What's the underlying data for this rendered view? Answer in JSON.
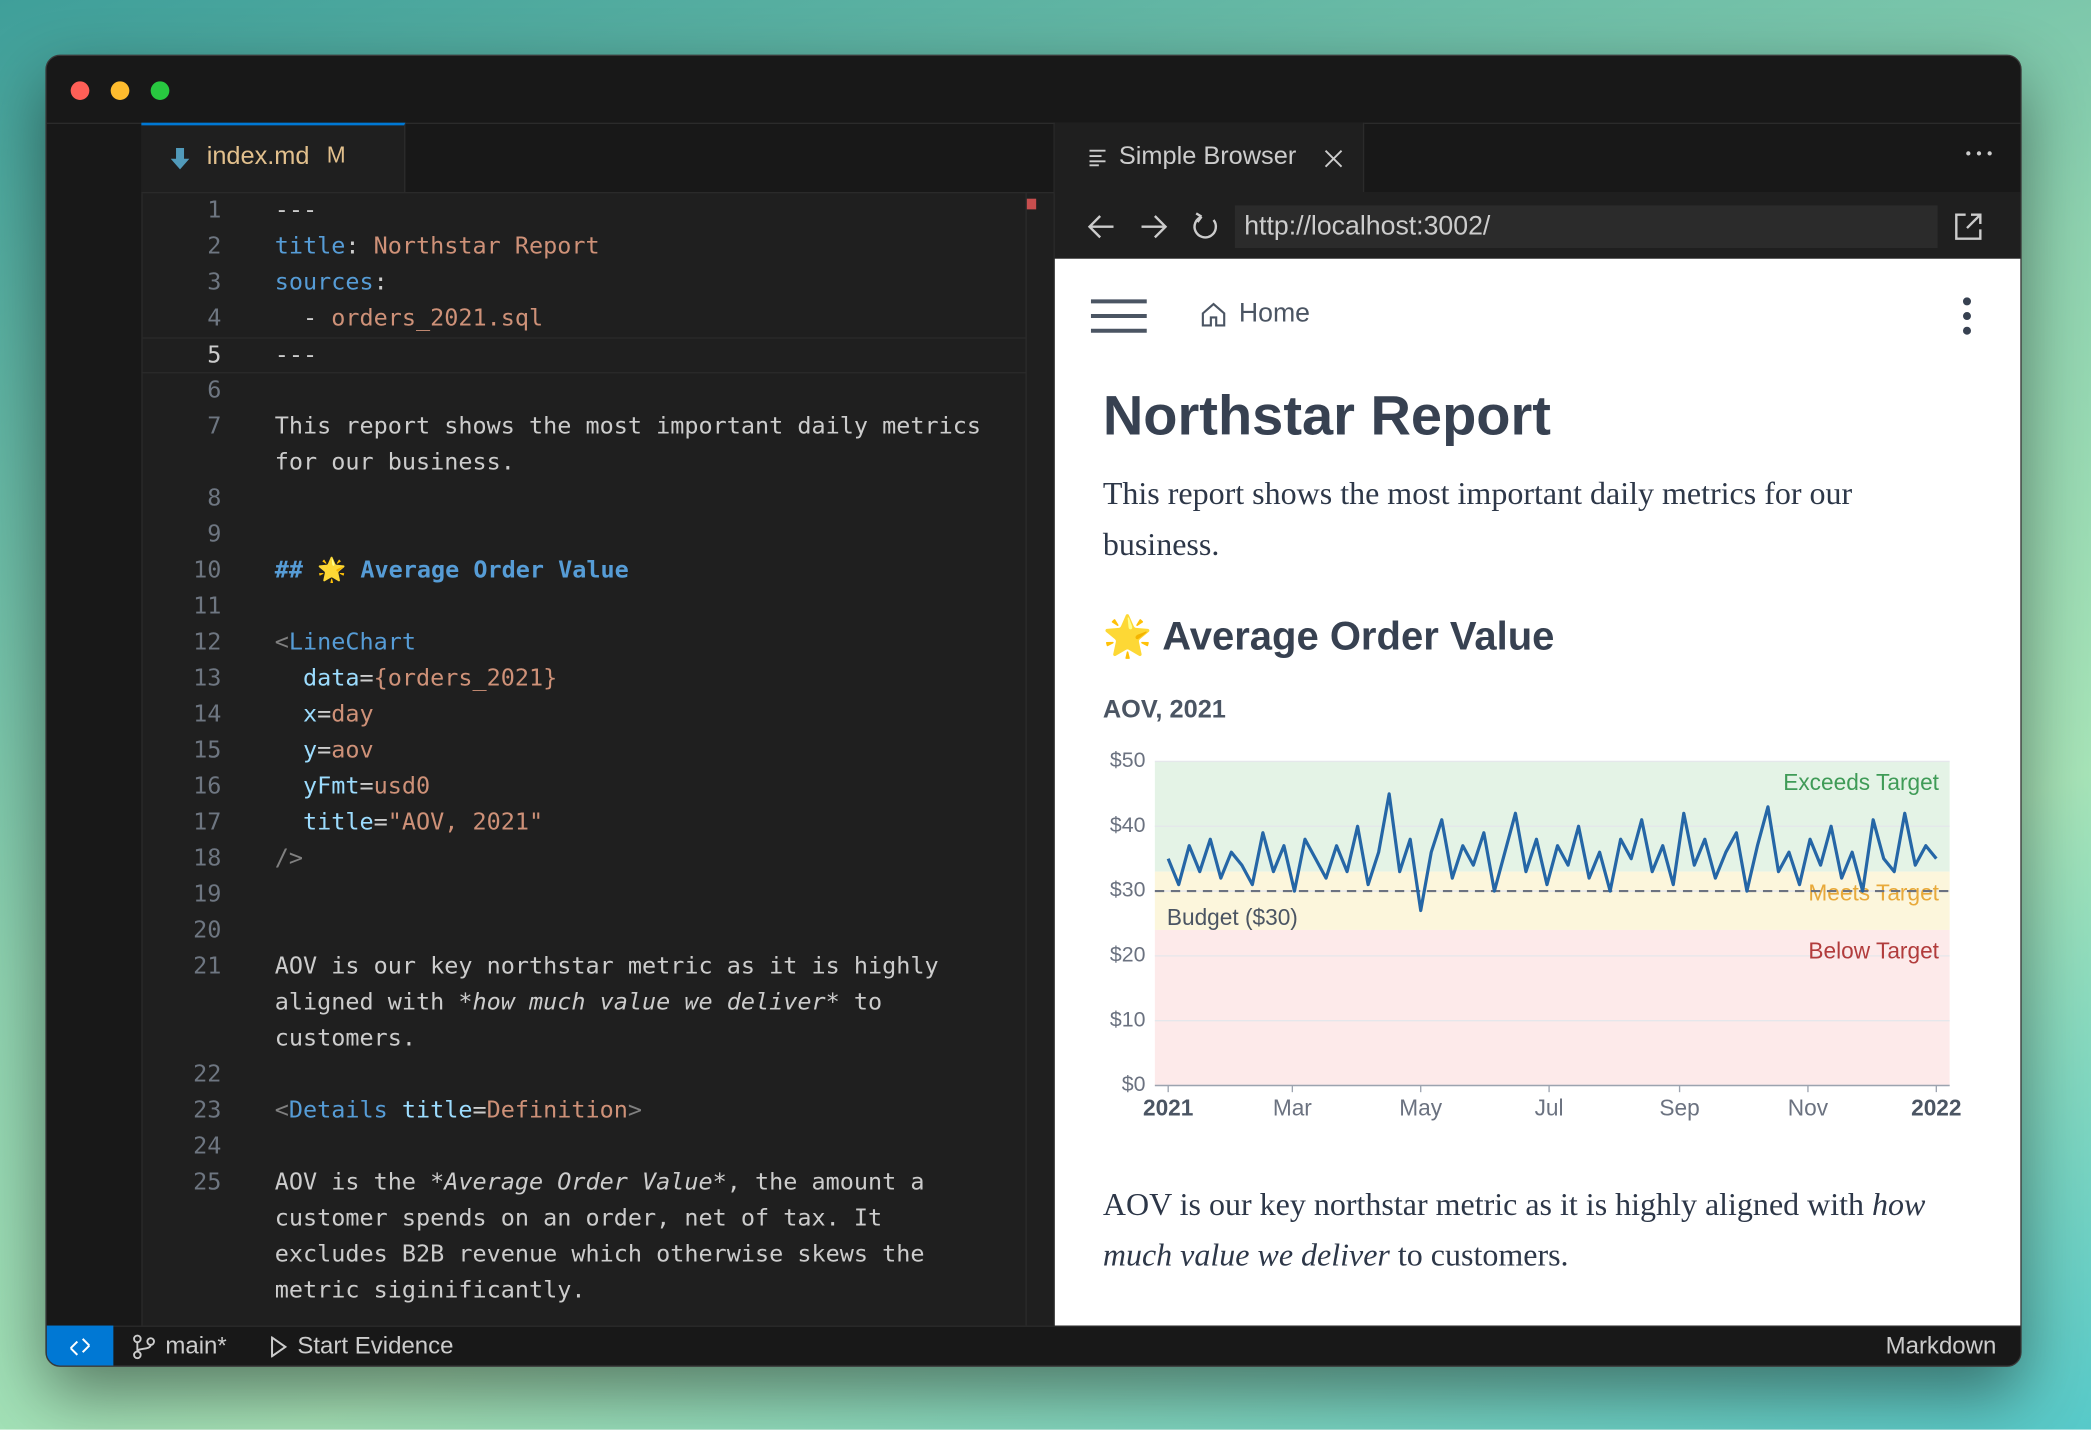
{
  "editor": {
    "tab": {
      "name": "index.md",
      "status": "M"
    },
    "current_line": 5,
    "lines": [
      {
        "number": 1,
        "rows": [
          [
            {
              "text": "---",
              "color": "#cccccc"
            }
          ]
        ]
      },
      {
        "number": 2,
        "rows": [
          [
            {
              "text": "title",
              "color": "#569cd6"
            },
            {
              "text": ": ",
              "color": "#cccccc"
            },
            {
              "text": "Northstar Report",
              "color": "#ce9178"
            }
          ]
        ]
      },
      {
        "number": 3,
        "rows": [
          [
            {
              "text": "sources",
              "color": "#569cd6"
            },
            {
              "text": ":",
              "color": "#cccccc"
            }
          ]
        ]
      },
      {
        "number": 4,
        "rows": [
          [
            {
              "text": "  - ",
              "color": "#cccccc"
            },
            {
              "text": "orders_2021.sql",
              "color": "#ce9178"
            }
          ]
        ]
      },
      {
        "number": 5,
        "rows": [
          [
            {
              "text": "---",
              "color": "#cccccc"
            }
          ]
        ]
      },
      {
        "number": 6,
        "rows": [
          []
        ]
      },
      {
        "number": 7,
        "rows": [
          [
            {
              "text": "This report shows the most important daily metrics",
              "color": "#cccccc"
            }
          ],
          [
            {
              "text": "for our business.",
              "color": "#cccccc"
            }
          ]
        ]
      },
      {
        "number": 8,
        "rows": [
          []
        ]
      },
      {
        "number": 9,
        "rows": [
          []
        ]
      },
      {
        "number": 10,
        "rows": [
          [
            {
              "text": "## 🌟 Average Order Value",
              "color": "#569cd6",
              "bold": true
            }
          ]
        ]
      },
      {
        "number": 11,
        "rows": [
          []
        ]
      },
      {
        "number": 12,
        "rows": [
          [
            {
              "text": "<",
              "color": "#808080"
            },
            {
              "text": "LineChart",
              "color": "#569cd6"
            }
          ]
        ]
      },
      {
        "number": 13,
        "rows": [
          [
            {
              "text": "  data",
              "color": "#9cdcfe"
            },
            {
              "text": "=",
              "color": "#cccccc"
            },
            {
              "text": "{orders_2021}",
              "color": "#ce9178"
            }
          ]
        ]
      },
      {
        "number": 14,
        "rows": [
          [
            {
              "text": "  x",
              "color": "#9cdcfe"
            },
            {
              "text": "=",
              "color": "#cccccc"
            },
            {
              "text": "day",
              "color": "#ce9178"
            }
          ]
        ]
      },
      {
        "number": 15,
        "rows": [
          [
            {
              "text": "  y",
              "color": "#9cdcfe"
            },
            {
              "text": "=",
              "color": "#cccccc"
            },
            {
              "text": "aov",
              "color": "#ce9178"
            }
          ]
        ]
      },
      {
        "number": 16,
        "rows": [
          [
            {
              "text": "  yFmt",
              "color": "#9cdcfe"
            },
            {
              "text": "=",
              "color": "#cccccc"
            },
            {
              "text": "usd0",
              "color": "#ce9178"
            }
          ]
        ]
      },
      {
        "number": 17,
        "rows": [
          [
            {
              "text": "  title",
              "color": "#9cdcfe"
            },
            {
              "text": "=",
              "color": "#cccccc"
            },
            {
              "text": "\"AOV, 2021\"",
              "color": "#ce9178"
            }
          ]
        ]
      },
      {
        "number": 18,
        "rows": [
          [
            {
              "text": "/>",
              "color": "#808080"
            }
          ]
        ]
      },
      {
        "number": 19,
        "rows": [
          []
        ]
      },
      {
        "number": 20,
        "rows": [
          []
        ]
      },
      {
        "number": 21,
        "rows": [
          [
            {
              "text": "AOV is our key northstar metric as it is highly",
              "color": "#cccccc"
            }
          ],
          [
            {
              "text": "aligned with ",
              "color": "#cccccc"
            },
            {
              "text": "*how much value we deliver*",
              "color": "#cccccc",
              "italic": true
            },
            {
              "text": " to",
              "color": "#cccccc"
            }
          ],
          [
            {
              "text": "customers.",
              "color": "#cccccc"
            }
          ]
        ]
      },
      {
        "number": 22,
        "rows": [
          []
        ]
      },
      {
        "number": 23,
        "rows": [
          [
            {
              "text": "<",
              "color": "#808080"
            },
            {
              "text": "Details",
              "color": "#569cd6"
            },
            {
              "text": " ",
              "color": "#cccccc"
            },
            {
              "text": "title",
              "color": "#9cdcfe"
            },
            {
              "text": "=",
              "color": "#cccccc"
            },
            {
              "text": "Definition",
              "color": "#ce9178"
            },
            {
              "text": ">",
              "color": "#808080"
            }
          ]
        ]
      },
      {
        "number": 24,
        "rows": [
          []
        ]
      },
      {
        "number": 25,
        "rows": [
          [
            {
              "text": "AOV is the ",
              "color": "#cccccc"
            },
            {
              "text": "*Average Order Value*",
              "color": "#cccccc",
              "italic": true
            },
            {
              "text": ", the amount a",
              "color": "#cccccc"
            }
          ],
          [
            {
              "text": "customer spends on an order, net of tax. It",
              "color": "#cccccc"
            }
          ],
          [
            {
              "text": "excludes B2B revenue which otherwise skews the",
              "color": "#cccccc"
            }
          ],
          [
            {
              "text": "metric siginificantly.",
              "color": "#cccccc"
            }
          ]
        ]
      }
    ]
  },
  "browser": {
    "tab": "Simple Browser",
    "url": "http://localhost:3002/"
  },
  "preview": {
    "nav": "Home",
    "title": "Northstar Report",
    "intro": "This report shows the most important daily metrics for our business.",
    "heading": "🌟 Average Order Value",
    "outro": [
      {
        "text": "AOV is our key northstar metric as it is highly aligned with "
      },
      {
        "text": "how much value we deliver",
        "italic": true
      },
      {
        "text": " to customers."
      }
    ]
  },
  "chart_data": {
    "type": "line",
    "title": "AOV, 2021",
    "color": "#2566a6",
    "grid": true,
    "x": [
      0,
      5,
      10,
      15,
      20,
      25,
      30,
      35,
      40,
      45,
      50,
      55,
      60,
      65,
      70,
      75,
      80,
      85,
      90,
      95,
      100,
      105,
      110,
      115,
      120,
      125,
      130,
      135,
      140,
      145,
      150,
      155,
      160,
      165,
      170,
      175,
      180,
      185,
      190,
      195,
      200,
      205,
      210,
      215,
      220,
      225,
      230,
      235,
      240,
      245,
      250,
      255,
      260,
      265,
      270,
      275,
      280,
      285,
      290,
      295,
      300,
      305,
      310,
      315,
      320,
      325,
      330,
      335,
      340,
      345,
      350,
      355,
      360,
      365
    ],
    "values": [
      35,
      31,
      37,
      33,
      38,
      32,
      36,
      34,
      31,
      39,
      33,
      37,
      30,
      38,
      35,
      32,
      37,
      33,
      40,
      31,
      36,
      45,
      33,
      38,
      27,
      36,
      41,
      32,
      37,
      34,
      39,
      30,
      36,
      42,
      33,
      38,
      31,
      37,
      34,
      40,
      32,
      36,
      30,
      38,
      35,
      41,
      33,
      37,
      31,
      42,
      34,
      38,
      32,
      36,
      39,
      30,
      37,
      43,
      33,
      36,
      31,
      38,
      34,
      40,
      32,
      36,
      30,
      41,
      35,
      33,
      42,
      34,
      37,
      35
    ],
    "xlim": [
      0,
      365
    ],
    "ylim": [
      0,
      50
    ],
    "xticks": [
      {
        "value": 0,
        "label": "2021"
      },
      {
        "value": 59,
        "label": "Mar"
      },
      {
        "value": 120,
        "label": "May"
      },
      {
        "value": 181,
        "label": "Jul"
      },
      {
        "value": 243,
        "label": "Sep"
      },
      {
        "value": 304,
        "label": "Nov"
      },
      {
        "value": 365,
        "label": "2022"
      }
    ],
    "yticks": [
      {
        "value": 0,
        "label": "$0"
      },
      {
        "value": 10,
        "label": "$10"
      },
      {
        "value": 20,
        "label": "$20"
      },
      {
        "value": 30,
        "label": "$30"
      },
      {
        "value": 40,
        "label": "$40"
      },
      {
        "value": 50,
        "label": "$50"
      }
    ],
    "bands": [
      {
        "label": "Exceeds Target",
        "from": 33,
        "to": 50,
        "color": "#e4f3e6",
        "label_color": "#3f9b57"
      },
      {
        "label": "Meets Target",
        "from": 24,
        "to": 33,
        "color": "#fcf6dc",
        "label_color": "#e8a93a"
      },
      {
        "label": "Below Target",
        "from": 0,
        "to": 24,
        "color": "#fdeaea",
        "label_color": "#b13c3c"
      }
    ],
    "reference_line": {
      "value": 30,
      "label": "Budget ($30)",
      "color": "#6b7280"
    }
  },
  "status_bar": {
    "branch": "main*",
    "task": "Start Evidence",
    "language": "Markdown"
  }
}
